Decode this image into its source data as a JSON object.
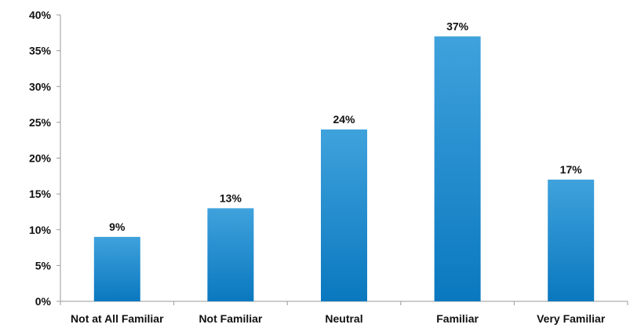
{
  "chart_data": {
    "type": "bar",
    "title": "",
    "xlabel": "",
    "ylabel": "",
    "categories": [
      "Not at All Familiar",
      "Not Familiar",
      "Neutral",
      "Familiar",
      "Very Familiar"
    ],
    "values": [
      9,
      13,
      24,
      37,
      17
    ],
    "value_labels": [
      "9%",
      "13%",
      "24%",
      "37%",
      "17%"
    ],
    "ylim": [
      0,
      40
    ],
    "yticks": [
      0,
      5,
      10,
      15,
      20,
      25,
      30,
      35,
      40
    ],
    "ytick_labels": [
      "0%",
      "5%",
      "10%",
      "15%",
      "20%",
      "25%",
      "30%",
      "35%",
      "40%"
    ],
    "grid": false,
    "legend": "none",
    "colors": {
      "bar_light": "#3fa2dc",
      "bar_dark": "#0a78bf",
      "axis": "#9a9a9a",
      "text": "#111111"
    }
  }
}
